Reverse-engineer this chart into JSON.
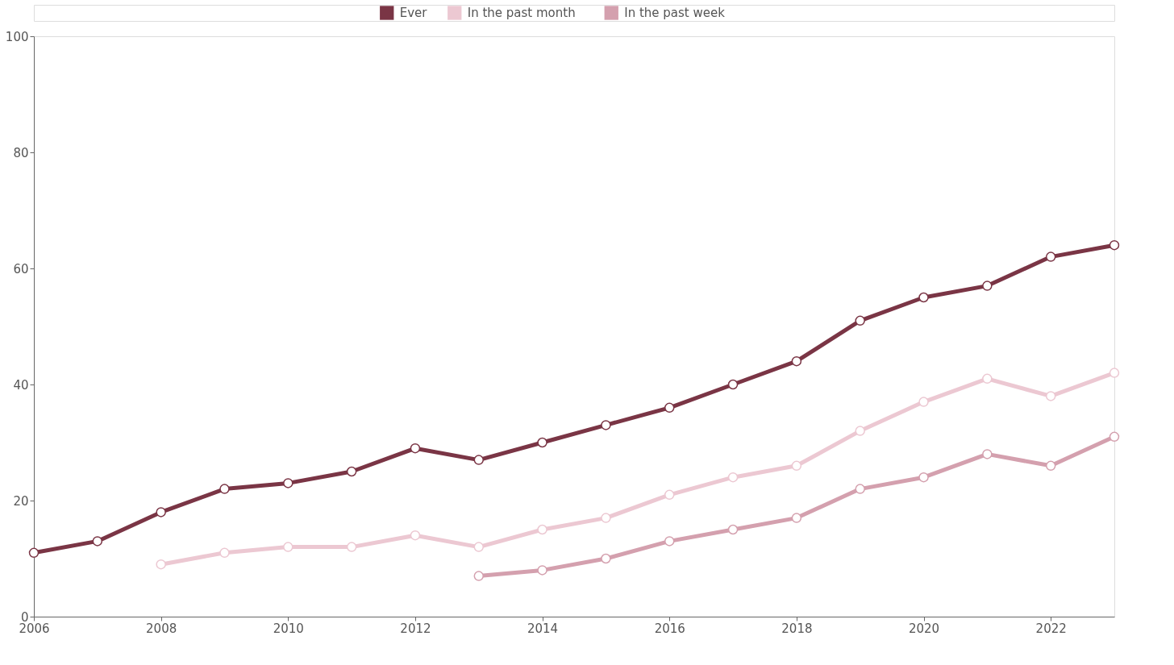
{
  "chart_data": {
    "type": "line",
    "x": [
      2006,
      2007,
      2008,
      2009,
      2010,
      2011,
      2012,
      2013,
      2014,
      2015,
      2016,
      2017,
      2018,
      2019,
      2020,
      2021,
      2022,
      2023
    ],
    "series": [
      {
        "name": "Ever",
        "color": "#7a3545",
        "values": [
          11,
          13,
          18,
          22,
          23,
          25,
          29,
          27,
          30,
          33,
          36,
          40,
          44,
          51,
          55,
          57,
          62,
          64
        ]
      },
      {
        "name": "In the past month",
        "color": "#ecc8d2",
        "values": [
          null,
          null,
          9,
          11,
          12,
          12,
          14,
          12,
          15,
          17,
          21,
          24,
          26,
          32,
          37,
          41,
          38,
          42
        ]
      },
      {
        "name": "In the past week",
        "color": "#d4a0ae",
        "values": [
          null,
          null,
          null,
          null,
          null,
          null,
          null,
          7,
          8,
          10,
          13,
          15,
          17,
          22,
          24,
          28,
          26,
          31
        ]
      }
    ],
    "xlim": [
      2006,
      2023
    ],
    "xticks": [
      2006,
      2008,
      2010,
      2012,
      2014,
      2016,
      2018,
      2020,
      2022
    ],
    "ylim": [
      0,
      100
    ],
    "yticks": [
      0,
      20,
      40,
      60,
      80,
      100
    ],
    "grid": false,
    "legend": "top",
    "marker": "circle",
    "line_style": "solid"
  }
}
